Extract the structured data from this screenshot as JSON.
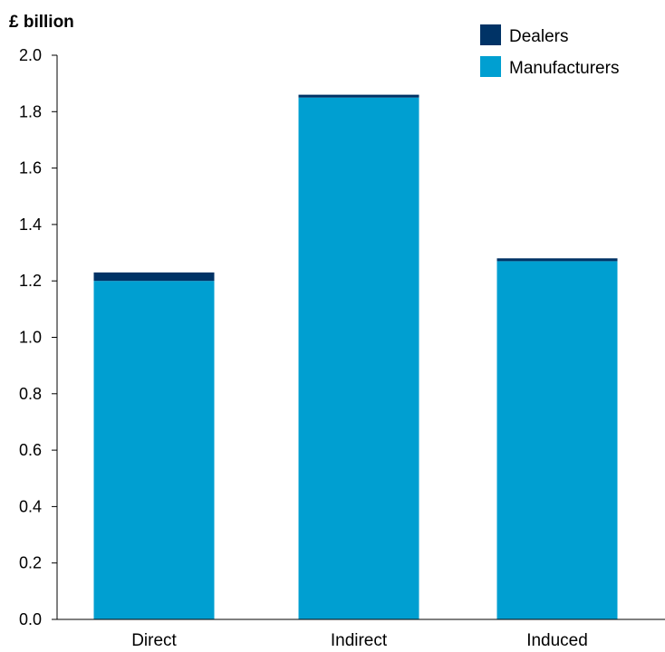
{
  "chart_data": {
    "type": "bar",
    "stacked": true,
    "title": "",
    "unit_label": "£ billion",
    "xlabel": "",
    "ylabel": "",
    "categories": [
      "Direct",
      "Indirect",
      "Induced"
    ],
    "series": [
      {
        "name": "Manufacturers",
        "color": "#009fd1",
        "values": [
          1.2,
          1.85,
          1.27
        ]
      },
      {
        "name": "Dealers",
        "color": "#003366",
        "values": [
          0.03,
          0.01,
          0.01
        ]
      }
    ],
    "ylim": [
      0,
      2.0
    ],
    "yticks": [
      "0.0",
      "0.2",
      "0.4",
      "0.6",
      "0.8",
      "1.0",
      "1.2",
      "1.4",
      "1.6",
      "1.8",
      "2.0"
    ],
    "grid": false,
    "legend_position": "top-right",
    "legend_order": [
      "Dealers",
      "Manufacturers"
    ]
  }
}
